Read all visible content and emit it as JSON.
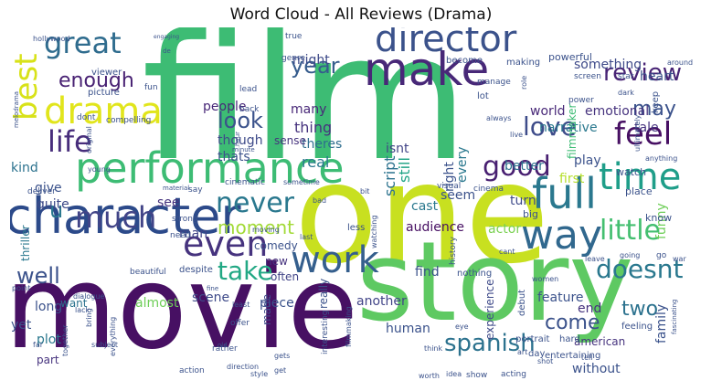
{
  "chart_data": {
    "type": "wordcloud",
    "title": "Word Cloud - All Reviews (Drama)",
    "words": [
      {
        "text": "film",
        "weight": 100,
        "color": "#3dbc74"
      },
      {
        "text": "movie",
        "weight": 86,
        "color": "#471063"
      },
      {
        "text": "one",
        "weight": 82,
        "color": "#c8e020"
      },
      {
        "text": "story",
        "weight": 70,
        "color": "#5ec962"
      },
      {
        "text": "character",
        "weight": 44,
        "color": "#2c4a8a"
      },
      {
        "text": "performance",
        "weight": 40,
        "color": "#3dbc74"
      },
      {
        "text": "make",
        "weight": 33,
        "color": "#482878"
      },
      {
        "text": "drama",
        "weight": 32,
        "color": "#e1e51c"
      },
      {
        "text": "director",
        "weight": 32,
        "color": "#3b528b"
      },
      {
        "text": "work",
        "weight": 29,
        "color": "#355f8d"
      },
      {
        "text": "even",
        "weight": 29,
        "color": "#46337e"
      },
      {
        "text": "way",
        "weight": 30,
        "color": "#31688e"
      },
      {
        "text": "full",
        "weight": 30,
        "color": "#2a788e"
      },
      {
        "text": "time",
        "weight": 30,
        "color": "#1f9e89"
      },
      {
        "text": "much",
        "weight": 27,
        "color": "#414487"
      },
      {
        "text": "great",
        "weight": 26,
        "color": "#2f6c8e"
      },
      {
        "text": "feel",
        "weight": 26,
        "color": "#471063"
      },
      {
        "text": "best",
        "weight": 26,
        "color": "#d8e219"
      },
      {
        "text": "never",
        "weight": 24,
        "color": "#2a788e"
      },
      {
        "text": "life",
        "weight": 25,
        "color": "#472d7b"
      },
      {
        "text": "good",
        "weight": 24,
        "color": "#481f71"
      },
      {
        "text": "take",
        "weight": 23,
        "color": "#22a884"
      },
      {
        "text": "little",
        "weight": 23,
        "color": "#44bf70"
      },
      {
        "text": "doesnt",
        "weight": 22,
        "color": "#2a788e"
      },
      {
        "text": "spanish",
        "weight": 22,
        "color": "#2c728e"
      },
      {
        "text": "review",
        "weight": 22,
        "color": "#482475"
      },
      {
        "text": "love",
        "weight": 22,
        "color": "#3e4c8a"
      },
      {
        "text": "look",
        "weight": 21,
        "color": "#3b528b"
      },
      {
        "text": "year",
        "weight": 20,
        "color": "#365c8d"
      },
      {
        "text": "enough",
        "weight": 19,
        "color": "#482173"
      },
      {
        "text": "u",
        "weight": 20,
        "color": "#2a788e"
      },
      {
        "text": "well",
        "weight": 20,
        "color": "#3b528b"
      },
      {
        "text": "may",
        "weight": 19,
        "color": "#3b528b"
      },
      {
        "text": "come",
        "weight": 18,
        "color": "#3b528b"
      },
      {
        "text": "two",
        "weight": 18,
        "color": "#2c728e"
      },
      {
        "text": "moment",
        "weight": 16,
        "color": "#a2da37"
      },
      {
        "text": "thing",
        "weight": 14,
        "color": "#46327e"
      },
      {
        "text": "might",
        "weight": 13,
        "color": "#3e4a89"
      },
      {
        "text": "many",
        "weight": 13,
        "color": "#482878"
      },
      {
        "text": "theres",
        "weight": 12,
        "color": "#2e6d8e"
      },
      {
        "text": "real",
        "weight": 13,
        "color": "#2a788e"
      },
      {
        "text": "though",
        "weight": 12,
        "color": "#3e4a89"
      },
      {
        "text": "thats",
        "weight": 12,
        "color": "#3b528b"
      },
      {
        "text": "sense",
        "weight": 11,
        "color": "#46337e"
      },
      {
        "text": "people",
        "weight": 12,
        "color": "#482878"
      },
      {
        "text": "script",
        "weight": 13,
        "color": "#2c728e"
      },
      {
        "text": "still",
        "weight": 12,
        "color": "#20a386"
      },
      {
        "text": "every",
        "weight": 12,
        "color": "#2a788e"
      },
      {
        "text": "right",
        "weight": 11,
        "color": "#3b528b"
      },
      {
        "text": "isnt",
        "weight": 12,
        "color": "#414487"
      },
      {
        "text": "emotional",
        "weight": 12,
        "color": "#46337e"
      },
      {
        "text": "world",
        "weight": 12,
        "color": "#482878"
      },
      {
        "text": "something",
        "weight": 12,
        "color": "#3e4a89"
      },
      {
        "text": "heart",
        "weight": 12,
        "color": "#3b528b"
      },
      {
        "text": "tale",
        "weight": 12,
        "color": "#46327e"
      },
      {
        "text": "narrative",
        "weight": 12,
        "color": "#2a788e"
      },
      {
        "text": "filmmaker",
        "weight": 10,
        "color": "#3dbc74"
      },
      {
        "text": "better",
        "weight": 11,
        "color": "#2c728e"
      },
      {
        "text": "play",
        "weight": 12,
        "color": "#3b528b"
      },
      {
        "text": "first",
        "weight": 12,
        "color": "#b5de2b"
      },
      {
        "text": "funny",
        "weight": 11,
        "color": "#6ece58"
      },
      {
        "text": "kind",
        "weight": 12,
        "color": "#2c728e"
      },
      {
        "text": "give",
        "weight": 12,
        "color": "#3b528b"
      },
      {
        "text": "quite",
        "weight": 12,
        "color": "#3e4a89"
      },
      {
        "text": "see",
        "weight": 11,
        "color": "#46337e"
      },
      {
        "text": "man",
        "weight": 12,
        "color": "#414487"
      },
      {
        "text": "seem",
        "weight": 11,
        "color": "#3b528b"
      },
      {
        "text": "cast",
        "weight": 12,
        "color": "#2a788e"
      },
      {
        "text": "audience",
        "weight": 11,
        "color": "#471063"
      },
      {
        "text": "actor",
        "weight": 12,
        "color": "#7ad151"
      },
      {
        "text": "turn",
        "weight": 11,
        "color": "#3e4a89"
      },
      {
        "text": "comedy",
        "weight": 11,
        "color": "#3b528b"
      },
      {
        "text": "new",
        "weight": 11,
        "color": "#46337e"
      },
      {
        "text": "often",
        "weight": 11,
        "color": "#414487"
      },
      {
        "text": "find",
        "weight": 12,
        "color": "#3b528b"
      },
      {
        "text": "thriller",
        "weight": 11,
        "color": "#2a788e"
      },
      {
        "text": "scene",
        "weight": 11,
        "color": "#3e4a89"
      },
      {
        "text": "almost",
        "weight": 11,
        "color": "#6ece58"
      },
      {
        "text": "another",
        "weight": 11,
        "color": "#414487"
      },
      {
        "text": "end",
        "weight": 12,
        "color": "#46337e"
      },
      {
        "text": "feature",
        "weight": 11,
        "color": "#3b528b"
      },
      {
        "text": "long",
        "weight": 11,
        "color": "#3b528b"
      },
      {
        "text": "want",
        "weight": 10,
        "color": "#2c728e"
      },
      {
        "text": "yet",
        "weight": 11,
        "color": "#3b528b"
      },
      {
        "text": "plot",
        "weight": 11,
        "color": "#2a788e"
      },
      {
        "text": "part",
        "weight": 10,
        "color": "#46337e"
      },
      {
        "text": "made",
        "weight": 10,
        "color": "#3e4a89"
      },
      {
        "text": "really",
        "weight": 11,
        "color": "#3b528b"
      },
      {
        "text": "piece",
        "weight": 11,
        "color": "#3b528b"
      },
      {
        "text": "human",
        "weight": 11,
        "color": "#3b528b"
      },
      {
        "text": "experience",
        "weight": 10,
        "color": "#3e4a89"
      },
      {
        "text": "american",
        "weight": 10,
        "color": "#46337e"
      },
      {
        "text": "without",
        "weight": 11,
        "color": "#3b528b"
      },
      {
        "text": "family",
        "weight": 11,
        "color": "#3b528b"
      },
      {
        "text": "feeling",
        "weight": 10,
        "color": "#3b528b"
      },
      {
        "text": "day",
        "weight": 10,
        "color": "#3b528b"
      },
      {
        "text": "portrait",
        "weight": 10,
        "color": "#3b528b"
      },
      {
        "text": "debut",
        "weight": 10,
        "color": "#3b528b"
      },
      {
        "text": "hard",
        "weight": 9,
        "color": "#3b528b"
      },
      {
        "text": "watch",
        "weight": 9,
        "color": "#3b528b"
      },
      {
        "text": "place",
        "weight": 9,
        "color": "#3b528b"
      },
      {
        "text": "big",
        "weight": 9,
        "color": "#3b528b"
      },
      {
        "text": "know",
        "weight": 9,
        "color": "#3b528b"
      },
      {
        "text": "history",
        "weight": 8,
        "color": "#3b528b"
      },
      {
        "text": "nothing",
        "weight": 8,
        "color": "#3b528b"
      },
      {
        "text": "cinema",
        "weight": 8,
        "color": "#3b528b"
      },
      {
        "text": "visual",
        "weight": 8,
        "color": "#3b528b"
      },
      {
        "text": "cinematic",
        "weight": 8,
        "color": "#3b528b"
      },
      {
        "text": "sometime",
        "weight": 7,
        "color": "#3b528b"
      },
      {
        "text": "picture",
        "weight": 9,
        "color": "#3b528b"
      },
      {
        "text": "compelling",
        "weight": 8,
        "color": "#3b528b"
      },
      {
        "text": "dont",
        "weight": 8,
        "color": "#3b528b"
      },
      {
        "text": "viewer",
        "weight": 8,
        "color": "#3b528b"
      },
      {
        "text": "fun",
        "weight": 8,
        "color": "#3b528b"
      },
      {
        "text": "hollywood",
        "weight": 7,
        "color": "#3b528b"
      },
      {
        "text": "genre",
        "weight": 8,
        "color": "#3b528b"
      },
      {
        "text": "lead",
        "weight": 8,
        "color": "#3b528b"
      },
      {
        "text": "true",
        "weight": 8,
        "color": "#3b528b"
      },
      {
        "text": "back",
        "weight": 8,
        "color": "#3b528b"
      },
      {
        "text": "become",
        "weight": 8,
        "color": "#3b528b"
      },
      {
        "text": "making",
        "weight": 8,
        "color": "#3b528b"
      },
      {
        "text": "powerful",
        "weight": 9,
        "color": "#3b528b"
      },
      {
        "text": "screen",
        "weight": 8,
        "color": "#3b528b"
      },
      {
        "text": "star",
        "weight": 8,
        "color": "#3b528b"
      },
      {
        "text": "around",
        "weight": 7,
        "color": "#3b528b"
      },
      {
        "text": "manage",
        "weight": 7,
        "color": "#3b528b"
      },
      {
        "text": "dark",
        "weight": 7,
        "color": "#3b528b"
      },
      {
        "text": "power",
        "weight": 8,
        "color": "#3b528b"
      },
      {
        "text": "role",
        "weight": 7,
        "color": "#3b528b"
      },
      {
        "text": "lot",
        "weight": 8,
        "color": "#3b528b"
      },
      {
        "text": "always",
        "weight": 7,
        "color": "#3b528b"
      },
      {
        "text": "live",
        "weight": 7,
        "color": "#3b528b"
      },
      {
        "text": "keep",
        "weight": 8,
        "color": "#3b528b"
      },
      {
        "text": "ultimately",
        "weight": 7,
        "color": "#3b528b"
      },
      {
        "text": "anything",
        "weight": 7,
        "color": "#3b528b"
      },
      {
        "text": "minute",
        "weight": 6,
        "color": "#3b528b"
      },
      {
        "text": "hour",
        "weight": 6,
        "color": "#3b528b"
      },
      {
        "text": "original",
        "weight": 7,
        "color": "#3b528b"
      },
      {
        "text": "young",
        "weight": 7,
        "color": "#3b528b"
      },
      {
        "text": "deliver",
        "weight": 8,
        "color": "#3b528b"
      },
      {
        "text": "say",
        "weight": 7,
        "color": "#3b528b"
      },
      {
        "text": "bad",
        "weight": 7,
        "color": "#3b528b"
      },
      {
        "text": "bit",
        "weight": 7,
        "color": "#3b528b"
      },
      {
        "text": "war",
        "weight": 7,
        "color": "#3b528b"
      },
      {
        "text": "going",
        "weight": 6,
        "color": "#3b528b"
      },
      {
        "text": "strong",
        "weight": 8,
        "color": "#3b528b"
      },
      {
        "text": "need",
        "weight": 8,
        "color": "#3b528b"
      },
      {
        "text": "moving",
        "weight": 7,
        "color": "#3b528b"
      },
      {
        "text": "last",
        "weight": 7,
        "color": "#3b528b"
      },
      {
        "text": "less",
        "weight": 9,
        "color": "#3b528b"
      },
      {
        "text": "watching",
        "weight": 7,
        "color": "#3b528b"
      },
      {
        "text": "cant",
        "weight": 7,
        "color": "#3b528b"
      },
      {
        "text": "women",
        "weight": 6,
        "color": "#3b528b"
      },
      {
        "text": "leave",
        "weight": 7,
        "color": "#3b528b"
      },
      {
        "text": "go",
        "weight": 8,
        "color": "#3b528b"
      },
      {
        "text": "material",
        "weight": 7,
        "color": "#3b528b"
      },
      {
        "text": "dialogue",
        "weight": 8,
        "color": "#3b528b"
      },
      {
        "text": "point",
        "weight": 7,
        "color": "#3b528b"
      },
      {
        "text": "lack",
        "weight": 7,
        "color": "#3b528b"
      },
      {
        "text": "beautiful",
        "weight": 8,
        "color": "#3b528b"
      },
      {
        "text": "despite",
        "weight": 9,
        "color": "#3b528b"
      },
      {
        "text": "fine",
        "weight": 6,
        "color": "#3b528b"
      },
      {
        "text": "least",
        "weight": 7,
        "color": "#3b528b"
      },
      {
        "text": "offer",
        "weight": 8,
        "color": "#3b528b"
      },
      {
        "text": "rather",
        "weight": 8,
        "color": "#3b528b"
      },
      {
        "text": "old",
        "weight": 6,
        "color": "#3b528b"
      },
      {
        "text": "bring",
        "weight": 7,
        "color": "#3b528b"
      },
      {
        "text": "far",
        "weight": 7,
        "color": "#3b528b"
      },
      {
        "text": "together",
        "weight": 7,
        "color": "#3b528b"
      },
      {
        "text": "subject",
        "weight": 7,
        "color": "#3b528b"
      },
      {
        "text": "everything",
        "weight": 7,
        "color": "#3b528b"
      },
      {
        "text": "action",
        "weight": 8,
        "color": "#3b528b"
      },
      {
        "text": "direction",
        "weight": 7,
        "color": "#3b528b"
      },
      {
        "text": "style",
        "weight": 8,
        "color": "#3b528b"
      },
      {
        "text": "get",
        "weight": 7,
        "color": "#3b528b"
      },
      {
        "text": "gets",
        "weight": 7,
        "color": "#3b528b"
      },
      {
        "text": "interesting",
        "weight": 8,
        "color": "#3b528b"
      },
      {
        "text": "filmmaking",
        "weight": 7,
        "color": "#3b528b"
      },
      {
        "text": "think",
        "weight": 7,
        "color": "#3b528b"
      },
      {
        "text": "show",
        "weight": 8,
        "color": "#3b528b"
      },
      {
        "text": "idea",
        "weight": 7,
        "color": "#3b528b"
      },
      {
        "text": "worth",
        "weight": 7,
        "color": "#3b528b"
      },
      {
        "text": "acting",
        "weight": 8,
        "color": "#3b528b"
      },
      {
        "text": "entertaining",
        "weight": 8,
        "color": "#3b528b"
      },
      {
        "text": "shot",
        "weight": 7,
        "color": "#3b528b"
      },
      {
        "text": "art",
        "weight": 7,
        "color": "#3b528b"
      },
      {
        "text": "eye",
        "weight": 7,
        "color": "#3b528b"
      },
      {
        "text": "tell",
        "weight": 7,
        "color": "#3b528b"
      },
      {
        "text": "fascinating",
        "weight": 6,
        "color": "#3b528b"
      },
      {
        "text": "melodrama",
        "weight": 6,
        "color": "#3b528b"
      },
      {
        "text": "engaging",
        "weight": 6,
        "color": "#3b528b"
      },
      {
        "text": "de",
        "weight": 6,
        "color": "#3b528b"
      }
    ]
  }
}
